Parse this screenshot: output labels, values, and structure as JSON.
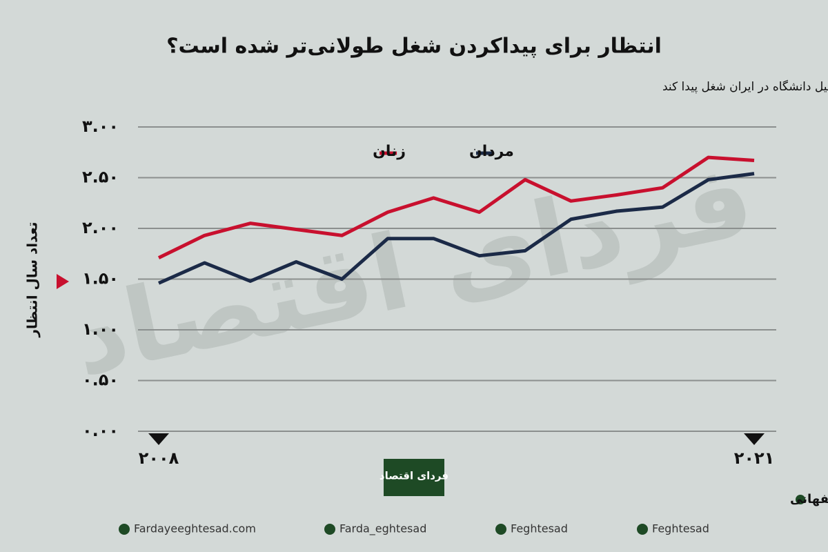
{
  "chart_data": {
    "type": "line",
    "title": "انتظار برای پیداکردن شغل طولانی‌تر شده است؟",
    "subtitle": "متوسط سال‌هایی که طول می‌کشد یک فارغ‌التحصیل دانشگاه در ایران شغل پیدا کند",
    "y_label": "تعداد سال انتظار",
    "x": [
      2008,
      2009,
      2010,
      2011,
      2012,
      2013,
      2014,
      2015,
      2016,
      2017,
      2018,
      2019,
      2020,
      2021
    ],
    "xlim": [
      2008,
      2021
    ],
    "xticks": [
      {
        "value": 2008,
        "label": "۲۰۰۸"
      },
      {
        "value": 2021,
        "label": "۲۰۲۱"
      }
    ],
    "ylim": [
      0,
      3
    ],
    "yticks": [
      {
        "value": 0,
        "label": "۰.۰۰"
      },
      {
        "value": 0.5,
        "label": "۰.۵۰"
      },
      {
        "value": 1,
        "label": "۱.۰۰"
      },
      {
        "value": 1.5,
        "label": "۱.۵۰"
      },
      {
        "value": 2,
        "label": "۲.۰۰"
      },
      {
        "value": 2.5,
        "label": "۲.۵۰"
      },
      {
        "value": 3,
        "label": "۳.۰۰"
      }
    ],
    "grid": true,
    "series": [
      {
        "name": "مردان",
        "color": "#1b2a47",
        "values": [
          1.46,
          1.66,
          1.48,
          1.67,
          1.5,
          1.9,
          1.9,
          1.73,
          1.78,
          2.09,
          2.17,
          2.21,
          2.48,
          2.54
        ]
      },
      {
        "name": "زنان",
        "color": "#c8102e",
        "values": [
          1.71,
          1.93,
          2.05,
          1.99,
          1.93,
          2.16,
          2.3,
          2.16,
          2.48,
          2.27,
          2.33,
          2.4,
          2.7,
          2.67
        ]
      }
    ],
    "watermark": "فردای اقتصاد",
    "logo": "فردای اقتصاد",
    "source": "منبع: وبلاگ دکتر صالحی اصفهانی",
    "links": [
      "Fardayeeghtesad.com",
      "Farda_eghtesad",
      "Feghtesad",
      "Feghtesad"
    ]
  }
}
